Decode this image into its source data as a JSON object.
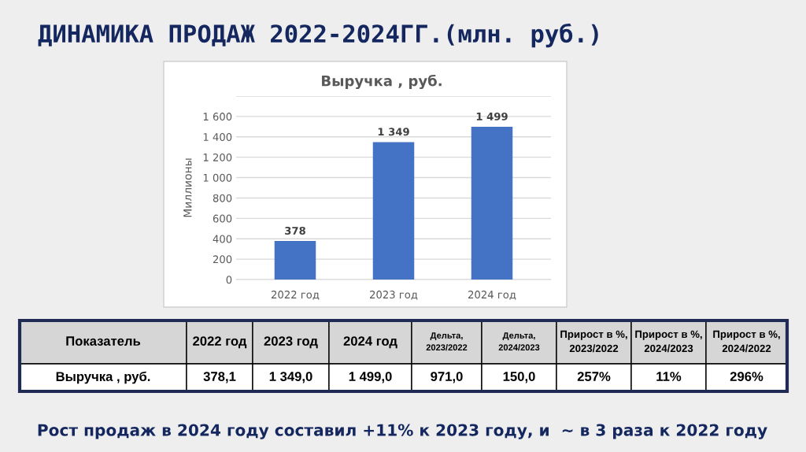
{
  "chart_data": [
    {
      "type": "bar",
      "title": "ДИНАМИКА ПРОДАЖ 2022-2024ГГ.(млн. руб.)",
      "subtitle": "Выручка , руб.",
      "ylabel": "Миллионы",
      "categories": [
        "2022 год",
        "2023 год",
        "2024 год"
      ],
      "values": [
        378,
        1349,
        1499
      ],
      "value_labels": [
        "378",
        "1 349",
        "1 499"
      ],
      "color": "#4472c4",
      "ylim": [
        0,
        1800
      ],
      "yticks": [
        0,
        200,
        400,
        600,
        800,
        {
          "value": 1000,
          "label": "1 000"
        },
        {
          "value": 1200,
          "label": "1 200"
        },
        {
          "value": 1400,
          "label": "1 400"
        },
        {
          "value": 1600,
          "label": "1 600"
        },
        {
          "value": 1800,
          "label": null
        }
      ],
      "grid": "y"
    },
    {
      "type": "other",
      "categories": [
        "Показатель",
        "2022 год",
        "2023 год",
        "2024 год",
        "Дельта,\n2023/2022",
        "Дельта,\n2024/2023",
        "Прирост в %,\n2023/2022",
        "Прирост в %,\n2024/2023",
        "Прирост в %,\n2024/2022"
      ],
      "annotations": [
        "Выручка , руб.",
        "378,1",
        "1 349,0",
        "1 499,0",
        "971,0",
        "150,0",
        "257%",
        "11%",
        "296%",
        "Рост продаж в 2024 году составил +11% к 2023 году, и  ~ в 3 раза к 2022 году"
      ]
    }
  ]
}
